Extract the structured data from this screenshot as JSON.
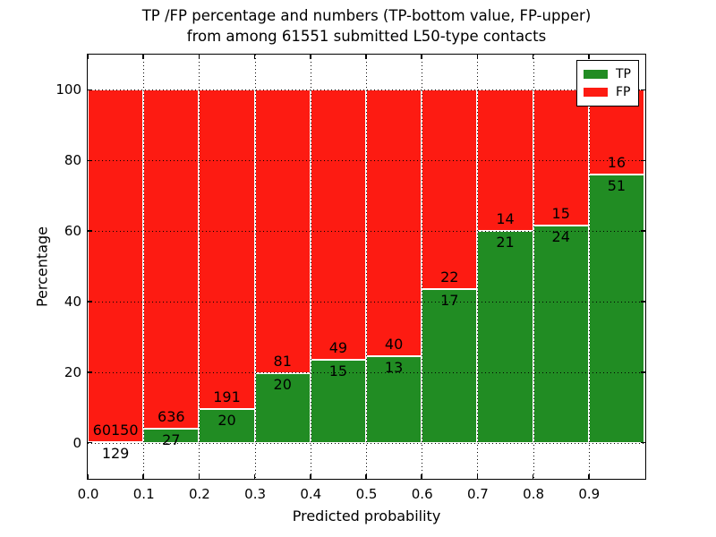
{
  "chart_data": {
    "type": "bar",
    "subtype": "stacked-percentage-histogram",
    "title_line1": "TP /FP percentage and numbers (TP-bottom value, FP-upper)",
    "title_line2": "from among 61551 submitted L50-type contacts",
    "xlabel": "Predicted probability",
    "ylabel": "Percentage",
    "xlim": [
      0.0,
      1.0
    ],
    "ylim": [
      -10,
      110
    ],
    "x_tick_labels": [
      "0.0",
      "0.1",
      "0.2",
      "0.3",
      "0.4",
      "0.5",
      "0.6",
      "0.7",
      "0.8",
      "0.9"
    ],
    "y_ticks": [
      0,
      20,
      40,
      60,
      80,
      100
    ],
    "bin_edges": [
      0.0,
      0.1,
      0.2,
      0.3,
      0.4,
      0.5,
      0.6,
      0.7,
      0.8,
      0.9,
      1.0
    ],
    "series": [
      {
        "name": "TP",
        "color": "#218c23",
        "counts": [
          129,
          27,
          20,
          20,
          15,
          13,
          17,
          21,
          24,
          51
        ]
      },
      {
        "name": "FP",
        "color": "#fd1b12",
        "counts": [
          60150,
          636,
          191,
          81,
          49,
          40,
          22,
          14,
          15,
          16
        ]
      }
    ],
    "tp_percentages": [
      0.21,
      4.07,
      9.48,
      19.8,
      23.44,
      24.53,
      43.59,
      60.0,
      61.54,
      76.12
    ],
    "legend": {
      "position": "upper right",
      "items": [
        {
          "label": "TP",
          "color": "#218c23"
        },
        {
          "label": "FP",
          "color": "#fd1b12"
        }
      ]
    },
    "grid": {
      "style": "dotted",
      "color": "#000000"
    },
    "axis_color": "#000000",
    "background_color": "#ffffff"
  }
}
